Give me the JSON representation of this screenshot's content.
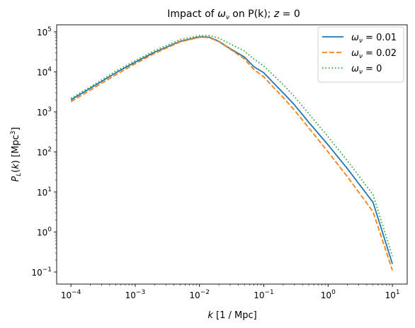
{
  "chart_data": {
    "type": "line",
    "title": "Impact of ω_ν on P(k); z = 0",
    "xlabel": "k [1 / Mpc]",
    "ylabel": "P_L(k) [Mpc^3]",
    "xscale": "log",
    "yscale": "log",
    "xlim": [
      6e-05,
      17
    ],
    "ylim": [
      0.05,
      150000
    ],
    "x_ticks": [
      {
        "value": 0.0001,
        "base": "10",
        "exp": "−4"
      },
      {
        "value": 0.001,
        "base": "10",
        "exp": "−3"
      },
      {
        "value": 0.01,
        "base": "10",
        "exp": "−2"
      },
      {
        "value": 0.1,
        "base": "10",
        "exp": "−1"
      },
      {
        "value": 1,
        "base": "10",
        "exp": "0"
      },
      {
        "value": 10,
        "base": "10",
        "exp": "1"
      }
    ],
    "y_ticks": [
      {
        "value": 0.1,
        "base": "10",
        "exp": "−1"
      },
      {
        "value": 1,
        "base": "10",
        "exp": "0"
      },
      {
        "value": 10,
        "base": "10",
        "exp": "1"
      },
      {
        "value": 100,
        "base": "10",
        "exp": "2"
      },
      {
        "value": 1000,
        "base": "10",
        "exp": "3"
      },
      {
        "value": 10000,
        "base": "10",
        "exp": "4"
      },
      {
        "value": 100000,
        "base": "10",
        "exp": "5"
      }
    ],
    "grid": false,
    "legend_position": "top-right",
    "series": [
      {
        "name": "ω_ν = 0.01",
        "color": "#1f77b4",
        "style": "solid",
        "x": [
          0.0001,
          0.0002,
          0.0005,
          0.001,
          0.002,
          0.005,
          0.01,
          0.014,
          0.02,
          0.03,
          0.05,
          0.07,
          0.1,
          0.15,
          0.2,
          0.3,
          0.5,
          1,
          2,
          5,
          10
        ],
        "y": [
          2000,
          3900,
          9500,
          17500,
          31000,
          58000,
          75000,
          74000,
          58000,
          38000,
          23500,
          13500,
          9500,
          4800,
          3000,
          1500,
          550,
          150,
          38,
          5.5,
          0.16
        ]
      },
      {
        "name": "ω_ν = 0.02",
        "color": "#ff7f0e",
        "style": "dashed",
        "x": [
          0.0001,
          0.0002,
          0.0005,
          0.001,
          0.002,
          0.005,
          0.01,
          0.014,
          0.02,
          0.03,
          0.05,
          0.07,
          0.1,
          0.15,
          0.2,
          0.3,
          0.5,
          1,
          2,
          5,
          10
        ],
        "y": [
          1800,
          3500,
          8500,
          16000,
          29000,
          56000,
          73000,
          72000,
          57000,
          37000,
          21000,
          11500,
          7500,
          3700,
          2300,
          1100,
          400,
          100,
          24,
          3.2,
          0.11
        ]
      },
      {
        "name": "ω_ν = 0",
        "color": "#2ca02c",
        "style": "dotted",
        "x": [
          0.0001,
          0.0002,
          0.0005,
          0.001,
          0.002,
          0.005,
          0.01,
          0.014,
          0.02,
          0.03,
          0.05,
          0.07,
          0.1,
          0.15,
          0.2,
          0.3,
          0.5,
          1,
          2,
          5,
          10
        ],
        "y": [
          2200,
          4200,
          10500,
          19000,
          34000,
          64000,
          80000,
          81000,
          70000,
          50000,
          33000,
          21000,
          14000,
          7500,
          4800,
          2400,
          900,
          240,
          60,
          8.5,
          0.25
        ]
      }
    ]
  }
}
